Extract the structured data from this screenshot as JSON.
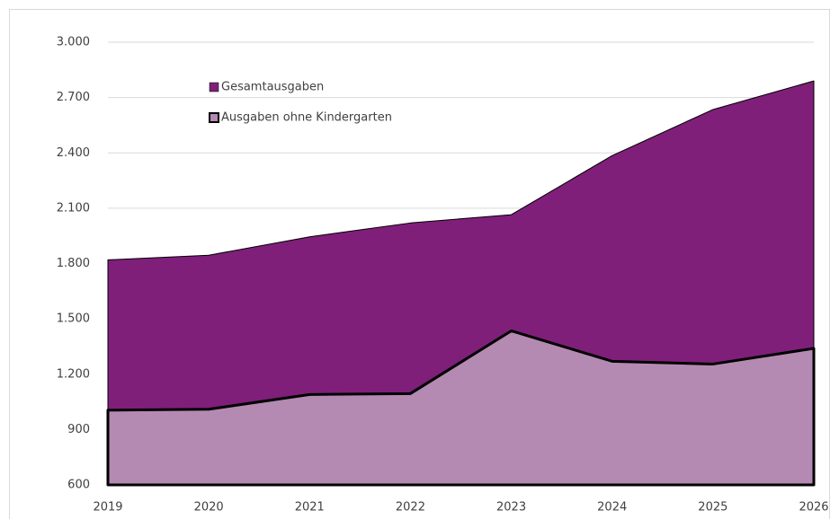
{
  "chart_data": {
    "type": "area",
    "categories": [
      "2019",
      "2020",
      "2021",
      "2022",
      "2023",
      "2024",
      "2025",
      "2026"
    ],
    "series": [
      {
        "name": "Gesamtausgaben",
        "color": "#7f1f7a",
        "values": [
          1820,
          1845,
          1945,
          2020,
          2065,
          2385,
          2635,
          2790
        ]
      },
      {
        "name": "Ausgaben ohne Kindergarten",
        "color": "#b48ab2",
        "values": [
          1005,
          1010,
          1090,
          1095,
          1435,
          1270,
          1255,
          1340
        ]
      }
    ],
    "ylim": [
      600,
      3000
    ],
    "yticks": [
      600,
      900,
      {
        "value": 1200,
        "label": "1.200"
      },
      {
        "value": 1500,
        "label": "1.500"
      },
      {
        "value": 1800,
        "label": "1.800"
      },
      {
        "value": 2100,
        "label": "2.100"
      },
      {
        "value": 2400,
        "label": "2.400"
      },
      {
        "value": 2700,
        "label": "2.700"
      },
      {
        "value": 3000,
        "label": "3.000"
      }
    ],
    "grid": true
  }
}
